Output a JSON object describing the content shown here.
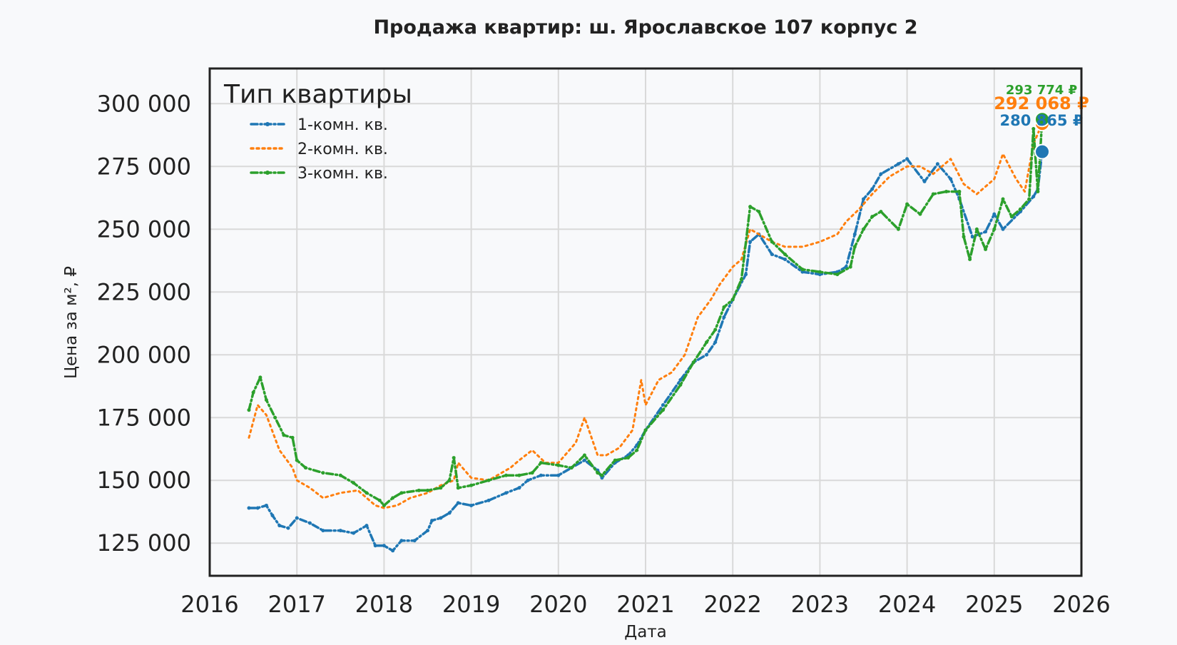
{
  "chart_data": {
    "type": "line",
    "title": "Продажа квартир: ш. Ярославское 107 корпус 2",
    "xlabel": "Дата",
    "ylabel": "Цена за м², ₽",
    "xlim": [
      2016.0,
      2026.0
    ],
    "ylim": [
      112000,
      314000
    ],
    "x_ticks": [
      "2016",
      "2017",
      "2018",
      "2019",
      "2020",
      "2021",
      "2022",
      "2023",
      "2024",
      "2025",
      "2026"
    ],
    "y_ticks": [
      125000,
      150000,
      175000,
      200000,
      225000,
      250000,
      275000,
      300000
    ],
    "y_tick_labels": [
      "125 000",
      "150 000",
      "175 000",
      "200 000",
      "225 000",
      "250 000",
      "275 000",
      "300 000"
    ],
    "grid": true,
    "legend": {
      "title": "Тип квартиры",
      "position": "top-left"
    },
    "series": [
      {
        "name": "1-комн. кв.",
        "color": "#1f77b4",
        "line_style": "dash-dot",
        "x": [
          2016.45,
          2016.55,
          2016.65,
          2016.72,
          2016.8,
          2016.9,
          2017.0,
          2017.15,
          2017.3,
          2017.5,
          2017.65,
          2017.8,
          2017.9,
          2018.0,
          2018.1,
          2018.2,
          2018.35,
          2018.5,
          2018.55,
          2018.65,
          2018.75,
          2018.85,
          2019.0,
          2019.2,
          2019.4,
          2019.55,
          2019.65,
          2019.8,
          2020.0,
          2020.15,
          2020.3,
          2020.45,
          2020.5,
          2020.65,
          2020.8,
          2020.9,
          2021.0,
          2021.2,
          2021.4,
          2021.55,
          2021.7,
          2021.8,
          2021.9,
          2022.0,
          2022.15,
          2022.2,
          2022.3,
          2022.45,
          2022.6,
          2022.8,
          2023.0,
          2023.2,
          2023.3,
          2023.4,
          2023.5,
          2023.6,
          2023.7,
          2023.9,
          2024.0,
          2024.2,
          2024.35,
          2024.5,
          2024.6,
          2024.75,
          2024.9,
          2025.0,
          2025.1,
          2025.3,
          2025.45,
          2025.5,
          2025.55
        ],
        "y": [
          139000,
          139000,
          140000,
          136000,
          132000,
          131000,
          135000,
          133000,
          130000,
          130000,
          129000,
          132000,
          124000,
          124000,
          122000,
          126000,
          126000,
          130000,
          134000,
          135000,
          137000,
          141000,
          140000,
          142000,
          145000,
          147000,
          150000,
          152000,
          152000,
          155000,
          158000,
          154000,
          151000,
          157000,
          160000,
          164000,
          170000,
          180000,
          190000,
          197000,
          200000,
          205000,
          215000,
          222000,
          232000,
          245000,
          248000,
          240000,
          238000,
          233000,
          232000,
          233000,
          235000,
          248000,
          262000,
          266000,
          272000,
          276000,
          278000,
          269000,
          276000,
          270000,
          262000,
          247000,
          249000,
          256000,
          250000,
          257000,
          263000,
          266000,
          280865
        ]
      },
      {
        "name": "2-комн. кв.",
        "color": "#ff7f0e",
        "line_style": "dotted",
        "x": [
          2016.45,
          2016.55,
          2016.65,
          2016.8,
          2016.95,
          2017.0,
          2017.15,
          2017.3,
          2017.5,
          2017.7,
          2017.9,
          2018.0,
          2018.15,
          2018.3,
          2018.5,
          2018.65,
          2018.8,
          2018.85,
          2019.0,
          2019.2,
          2019.45,
          2019.55,
          2019.7,
          2019.85,
          2020.0,
          2020.2,
          2020.3,
          2020.45,
          2020.55,
          2020.7,
          2020.85,
          2020.95,
          2021.0,
          2021.15,
          2021.3,
          2021.45,
          2021.6,
          2021.75,
          2021.85,
          2022.0,
          2022.1,
          2022.2,
          2022.3,
          2022.45,
          2022.6,
          2022.8,
          2023.0,
          2023.2,
          2023.3,
          2023.45,
          2023.6,
          2023.8,
          2024.0,
          2024.15,
          2024.3,
          2024.5,
          2024.65,
          2024.8,
          2025.0,
          2025.1,
          2025.25,
          2025.35,
          2025.45,
          2025.55
        ],
        "y": [
          167000,
          180000,
          176000,
          162000,
          155000,
          150000,
          147000,
          143000,
          145000,
          146000,
          140000,
          139000,
          140000,
          143000,
          145000,
          148000,
          150000,
          157000,
          151000,
          150000,
          155000,
          158000,
          162000,
          157000,
          157000,
          165000,
          175000,
          160000,
          160000,
          163000,
          170000,
          190000,
          180000,
          190000,
          193000,
          200000,
          215000,
          222000,
          228000,
          235000,
          238000,
          250000,
          248000,
          245000,
          243000,
          243000,
          245000,
          248000,
          253000,
          258000,
          264000,
          271000,
          275000,
          275000,
          272000,
          278000,
          268000,
          264000,
          270000,
          280000,
          270000,
          265000,
          284000,
          292068
        ]
      },
      {
        "name": "3-комн. кв.",
        "color": "#2ca02c",
        "line_style": "dash-dot",
        "x": [
          2016.45,
          2016.5,
          2016.58,
          2016.65,
          2016.75,
          2016.85,
          2016.95,
          2017.0,
          2017.1,
          2017.3,
          2017.5,
          2017.65,
          2017.8,
          2017.95,
          2018.0,
          2018.1,
          2018.2,
          2018.4,
          2018.5,
          2018.65,
          2018.75,
          2018.8,
          2018.85,
          2019.0,
          2019.2,
          2019.4,
          2019.55,
          2019.7,
          2019.8,
          2020.0,
          2020.15,
          2020.3,
          2020.45,
          2020.5,
          2020.65,
          2020.8,
          2020.9,
          2021.0,
          2021.2,
          2021.4,
          2021.55,
          2021.7,
          2021.8,
          2021.9,
          2022.0,
          2022.1,
          2022.2,
          2022.3,
          2022.45,
          2022.6,
          2022.8,
          2023.0,
          2023.2,
          2023.35,
          2023.4,
          2023.5,
          2023.6,
          2023.7,
          2023.9,
          2024.0,
          2024.15,
          2024.3,
          2024.45,
          2024.6,
          2024.65,
          2024.72,
          2024.8,
          2024.9,
          2025.0,
          2025.1,
          2025.2,
          2025.3,
          2025.4,
          2025.45,
          2025.5,
          2025.55
        ],
        "y": [
          178000,
          185000,
          191000,
          182000,
          175000,
          168000,
          167000,
          158000,
          155000,
          153000,
          152000,
          149000,
          145000,
          142000,
          140000,
          143000,
          145000,
          146000,
          146000,
          147000,
          150000,
          159000,
          147000,
          148000,
          150000,
          152000,
          152000,
          153000,
          157000,
          156000,
          155000,
          160000,
          153000,
          152000,
          158000,
          159000,
          162000,
          170000,
          178000,
          188000,
          197000,
          205000,
          210000,
          219000,
          222000,
          230000,
          259000,
          257000,
          245000,
          240000,
          234000,
          233000,
          232000,
          235000,
          243000,
          250000,
          255000,
          257000,
          250000,
          260000,
          256000,
          264000,
          265000,
          265000,
          247000,
          238000,
          250000,
          242000,
          250000,
          262000,
          255000,
          258000,
          262000,
          290000,
          265000,
          293774
        ]
      }
    ],
    "end_labels": [
      {
        "series": "3-комн. кв.",
        "text": "293 774 ₽",
        "color": "#2ca02c"
      },
      {
        "series": "2-комн. кв.",
        "text": "292 068 ₽",
        "color": "#ff7f0e"
      },
      {
        "series": "1-комн. кв.",
        "text": "280 865 ₽",
        "color": "#1f77b4"
      }
    ]
  }
}
